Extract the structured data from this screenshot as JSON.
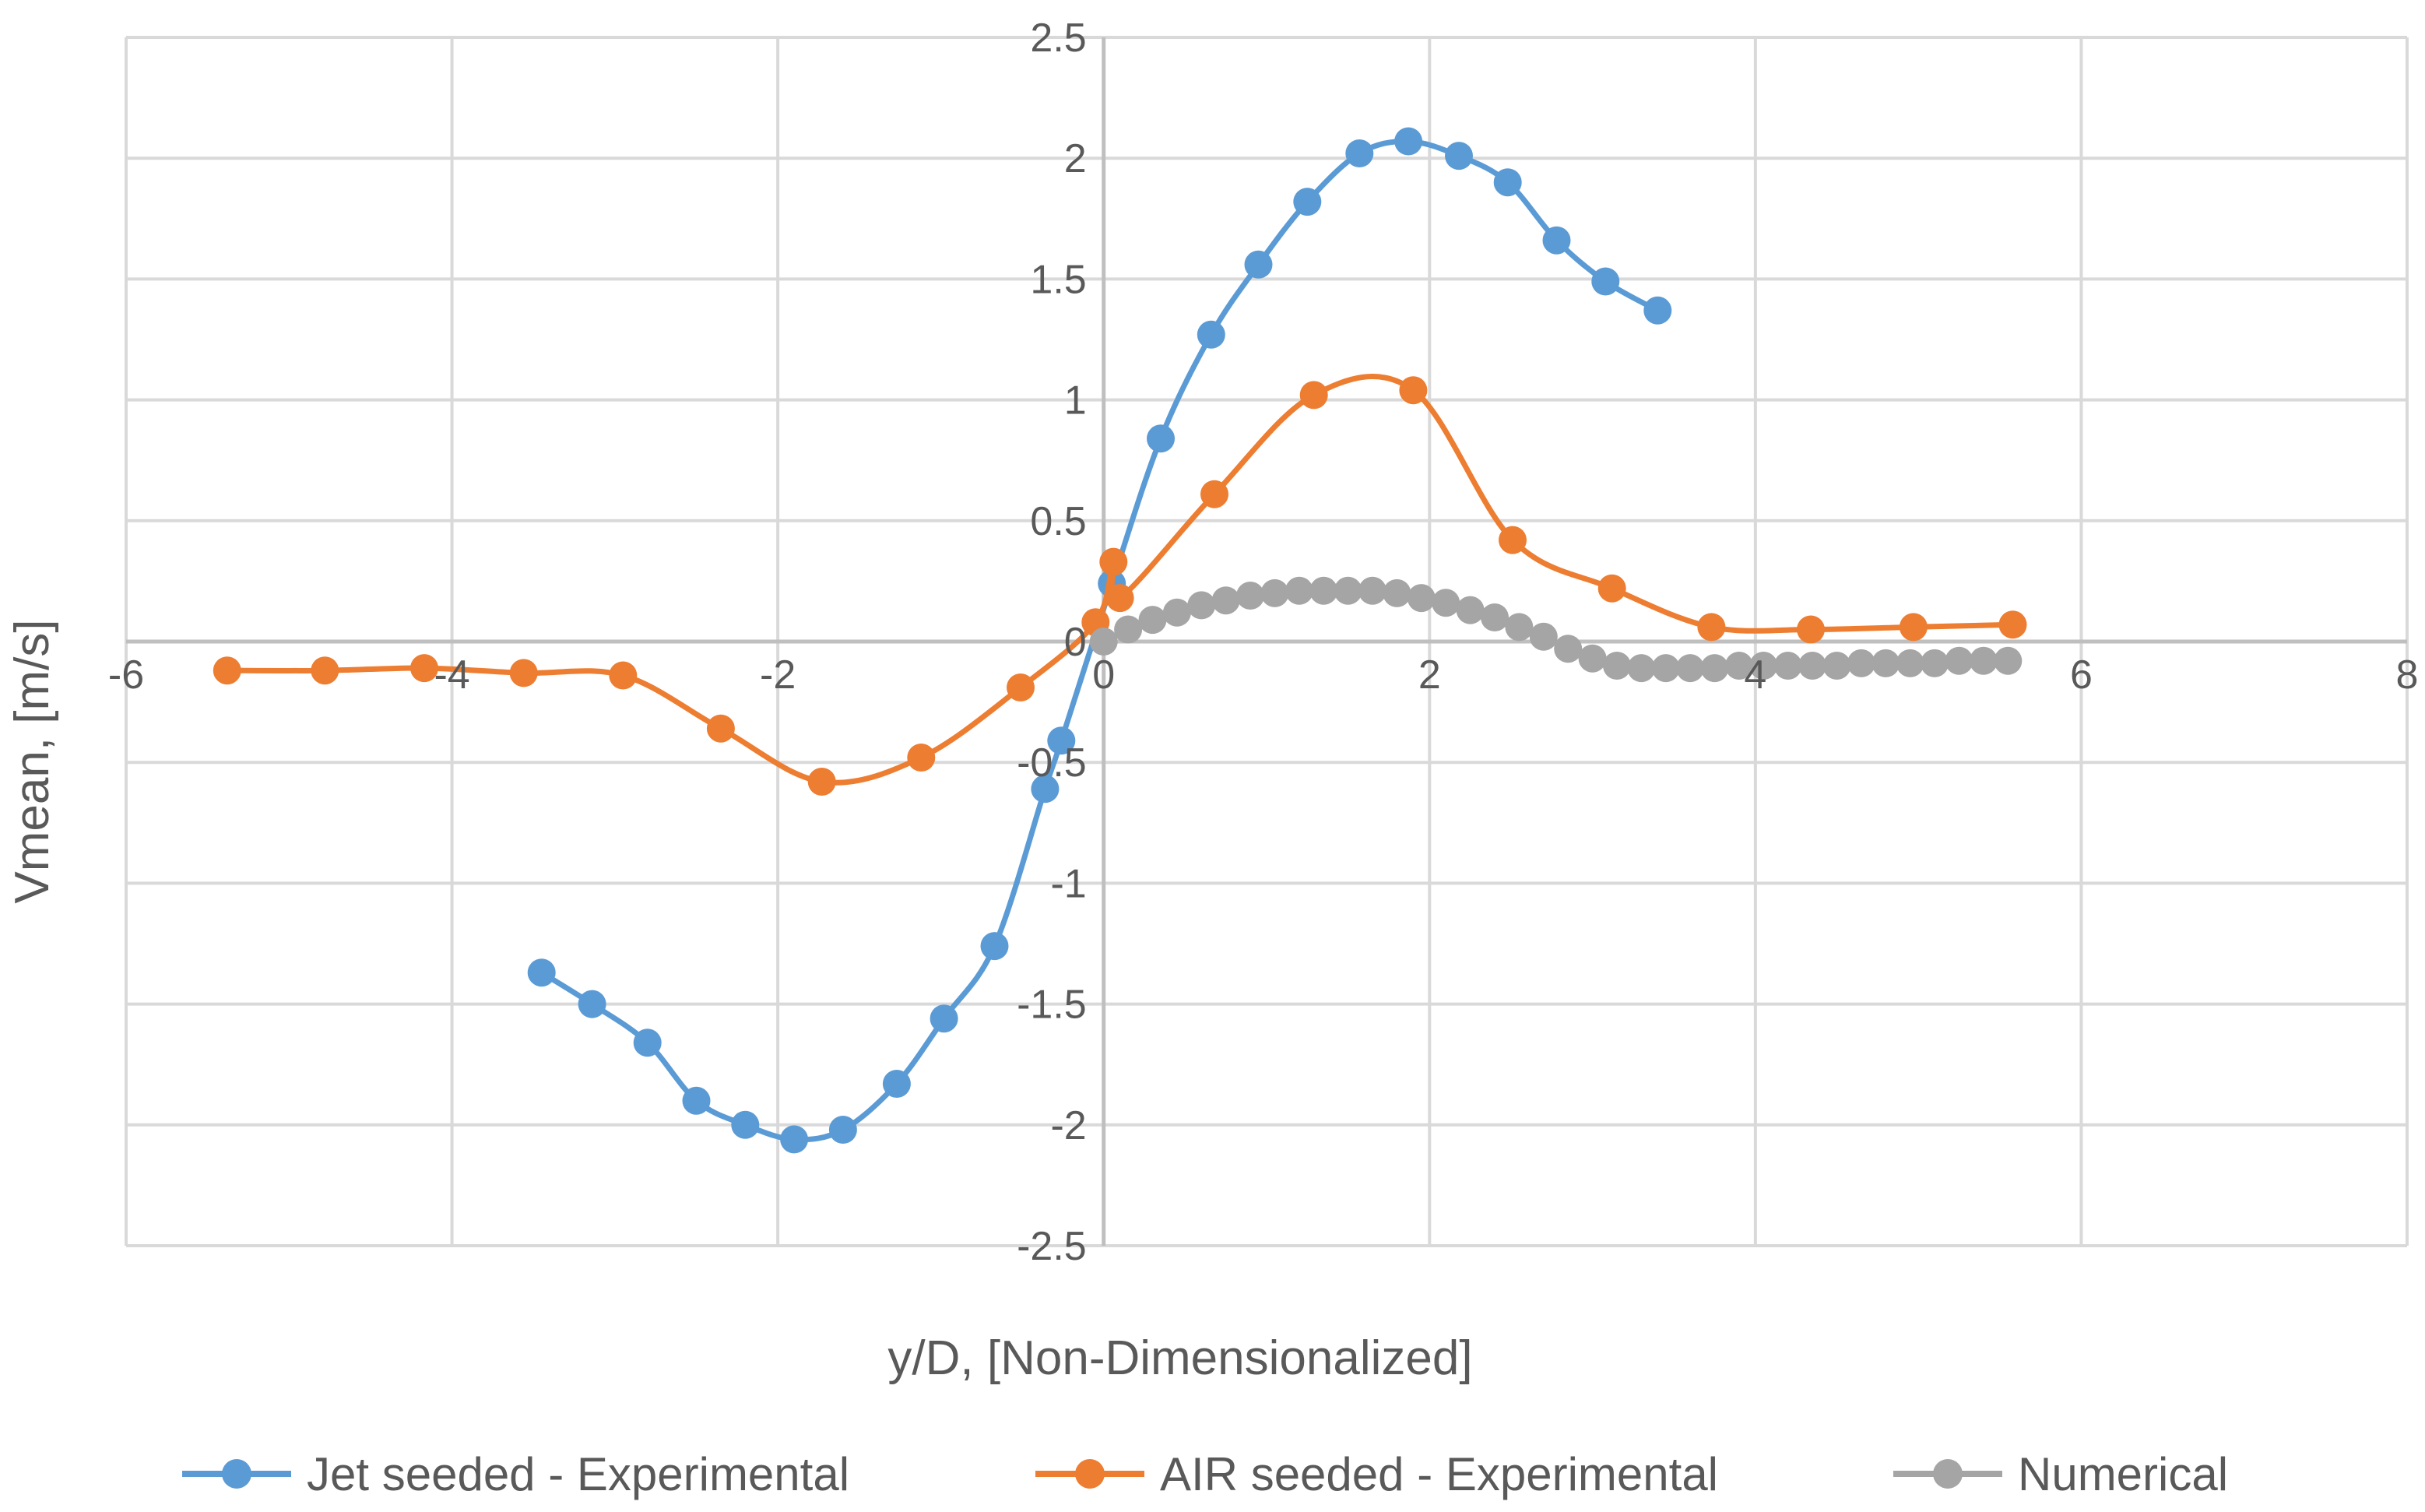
{
  "chart_data": {
    "type": "line",
    "title": "",
    "xlabel": "y/D, [Non-Dimensionalized]",
    "ylabel": "Vmean, [m/s]",
    "xlim": [
      -6,
      8
    ],
    "ylim": [
      -2.5,
      2.5
    ],
    "x_ticks": [
      -6,
      -4,
      -2,
      0,
      2,
      4,
      6,
      8
    ],
    "y_ticks": [
      2.5,
      2,
      1.5,
      1,
      0.5,
      0,
      -0.5,
      -1,
      -1.5,
      -2,
      -2.5
    ],
    "grid": true,
    "legend_position": "bottom",
    "series": [
      {
        "name": "Jet seeded - Experimental",
        "color": "#5B9BD5",
        "x": [
          -3.45,
          -3.14,
          -2.8,
          -2.5,
          -2.2,
          -1.9,
          -1.6,
          -1.27,
          -0.98,
          -0.67,
          -0.36,
          -0.26,
          0.05,
          0.35,
          0.66,
          0.95,
          1.25,
          1.57,
          1.87,
          2.18,
          2.48,
          2.78,
          3.08,
          3.4
        ],
        "y": [
          -1.37,
          -1.5,
          -1.66,
          -1.9,
          -2.0,
          -2.06,
          -2.02,
          -1.83,
          -1.56,
          -1.26,
          -0.61,
          -0.41,
          0.24,
          0.84,
          1.27,
          1.56,
          1.82,
          2.02,
          2.07,
          2.01,
          1.9,
          1.66,
          1.49,
          1.37
        ]
      },
      {
        "name": "AIR seeded - Experimental",
        "color": "#ED7D31",
        "x": [
          -5.38,
          -4.78,
          -4.17,
          -3.56,
          -2.95,
          -2.35,
          -1.73,
          -1.12,
          -0.51,
          -0.05,
          0.06,
          0.1,
          0.68,
          1.29,
          1.9,
          2.51,
          3.12,
          3.73,
          4.34,
          4.97,
          5.58
        ],
        "y": [
          -0.12,
          -0.12,
          -0.11,
          -0.13,
          -0.14,
          -0.36,
          -0.58,
          -0.48,
          -0.19,
          0.08,
          0.33,
          0.18,
          0.61,
          1.02,
          1.04,
          0.42,
          0.22,
          0.06,
          0.05,
          0.06,
          0.07
        ]
      },
      {
        "name": "Numerical",
        "color": "#A5A5A5",
        "x": [
          0.0,
          0.15,
          0.3,
          0.45,
          0.6,
          0.75,
          0.9,
          1.05,
          1.2,
          1.35,
          1.5,
          1.65,
          1.8,
          1.95,
          2.1,
          2.25,
          2.4,
          2.55,
          2.7,
          2.85,
          3.0,
          3.15,
          3.3,
          3.45,
          3.6,
          3.75,
          3.9,
          4.05,
          4.2,
          4.35,
          4.5,
          4.65,
          4.8,
          4.95,
          5.1,
          5.25,
          5.4,
          5.55
        ],
        "y": [
          0.0,
          0.05,
          0.09,
          0.12,
          0.15,
          0.17,
          0.19,
          0.2,
          0.21,
          0.21,
          0.21,
          0.21,
          0.2,
          0.18,
          0.16,
          0.13,
          0.1,
          0.06,
          0.02,
          -0.03,
          -0.07,
          -0.1,
          -0.11,
          -0.11,
          -0.11,
          -0.11,
          -0.1,
          -0.1,
          -0.1,
          -0.1,
          -0.1,
          -0.09,
          -0.09,
          -0.09,
          -0.09,
          -0.08,
          -0.08,
          -0.08
        ]
      }
    ]
  }
}
